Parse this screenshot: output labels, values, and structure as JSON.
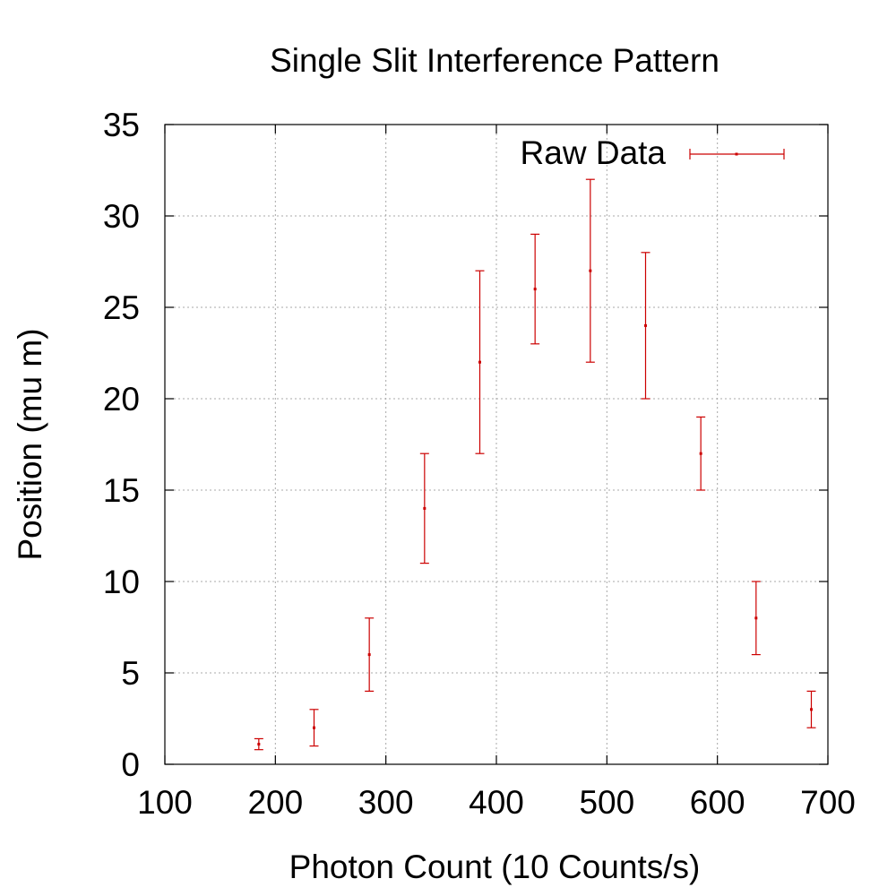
{
  "chart_data": {
    "type": "scatter",
    "title": "Single Slit Interference Pattern",
    "xlabel": "Photon Count (10 Counts/s)",
    "ylabel": "Position (mu m)",
    "xlim": [
      100,
      700
    ],
    "ylim": [
      0,
      35
    ],
    "x_ticks": [
      100,
      200,
      300,
      400,
      500,
      600,
      700
    ],
    "y_ticks": [
      0,
      5,
      10,
      15,
      20,
      25,
      30,
      35
    ],
    "grid": true,
    "legend_position": "top-right",
    "series": [
      {
        "name": "Raw Data",
        "color": "#cc0000",
        "style": "points-with-y-errorbars",
        "points": [
          {
            "x": 185,
            "y": 1.1,
            "y_low": 0.8,
            "y_high": 1.4
          },
          {
            "x": 235,
            "y": 2,
            "y_low": 1,
            "y_high": 3
          },
          {
            "x": 285,
            "y": 6,
            "y_low": 4,
            "y_high": 8
          },
          {
            "x": 335,
            "y": 14,
            "y_low": 11,
            "y_high": 17
          },
          {
            "x": 385,
            "y": 22,
            "y_low": 17,
            "y_high": 27
          },
          {
            "x": 435,
            "y": 26,
            "y_low": 23,
            "y_high": 29
          },
          {
            "x": 485,
            "y": 27,
            "y_low": 22,
            "y_high": 32
          },
          {
            "x": 535,
            "y": 24,
            "y_low": 20,
            "y_high": 28
          },
          {
            "x": 585,
            "y": 17,
            "y_low": 15,
            "y_high": 19
          },
          {
            "x": 635,
            "y": 8,
            "y_low": 6,
            "y_high": 10
          },
          {
            "x": 685,
            "y": 3,
            "y_low": 2,
            "y_high": 4
          }
        ]
      }
    ]
  }
}
